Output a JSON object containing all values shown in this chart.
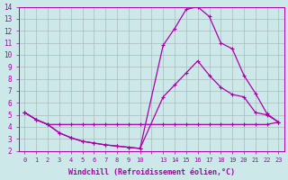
{
  "bg_color": "#cce8e8",
  "grid_color": "#aabbbb",
  "line_color": "#aa00aa",
  "xlabel": "Windchill (Refroidissement éolien,°C)",
  "ylim": [
    2,
    14
  ],
  "yticks": [
    2,
    3,
    4,
    5,
    6,
    7,
    8,
    9,
    10,
    11,
    12,
    13,
    14
  ],
  "xtick_positions": [
    0,
    1,
    2,
    3,
    4,
    5,
    6,
    7,
    8,
    9,
    10,
    11,
    12,
    13,
    14,
    15,
    16,
    17,
    18,
    19,
    20,
    21,
    22
  ],
  "xtick_labels": [
    "0",
    "1",
    "2",
    "3",
    "4",
    "5",
    "6",
    "7",
    "8",
    "9",
    "10",
    "",
    "13",
    "14",
    "15",
    "16",
    "17",
    "18",
    "19",
    "20",
    "21",
    "22",
    "23"
  ],
  "lines": [
    {
      "x": [
        0,
        1,
        2,
        3,
        4,
        5,
        6,
        7,
        8,
        9,
        10,
        12,
        13,
        14,
        15,
        16,
        17,
        18,
        19,
        20,
        21,
        22
      ],
      "y": [
        5.2,
        4.6,
        4.2,
        4.2,
        4.2,
        4.2,
        4.2,
        4.2,
        4.2,
        4.2,
        4.2,
        4.2,
        4.2,
        4.2,
        4.2,
        4.2,
        4.2,
        4.2,
        4.2,
        4.2,
        4.2,
        4.4
      ]
    },
    {
      "x": [
        0,
        1,
        2,
        3,
        4,
        5,
        6,
        7,
        8,
        9,
        10,
        12,
        13,
        14,
        15,
        16,
        17,
        18,
        19,
        20,
        21,
        22
      ],
      "y": [
        5.2,
        4.6,
        4.2,
        3.5,
        3.1,
        2.8,
        2.65,
        2.5,
        2.4,
        2.3,
        2.2,
        6.5,
        7.5,
        8.5,
        9.5,
        8.3,
        7.3,
        6.7,
        6.5,
        5.2,
        5.0,
        4.4
      ]
    },
    {
      "x": [
        0,
        1,
        2,
        3,
        4,
        5,
        6,
        7,
        8,
        9,
        10,
        12,
        13,
        14,
        15,
        16,
        17,
        18,
        19,
        20,
        21,
        22
      ],
      "y": [
        5.2,
        4.6,
        4.2,
        3.5,
        3.1,
        2.8,
        2.65,
        2.5,
        2.4,
        2.3,
        2.2,
        10.8,
        12.2,
        13.8,
        14.0,
        13.2,
        11.0,
        10.5,
        8.3,
        6.8,
        5.1,
        4.4
      ]
    }
  ]
}
